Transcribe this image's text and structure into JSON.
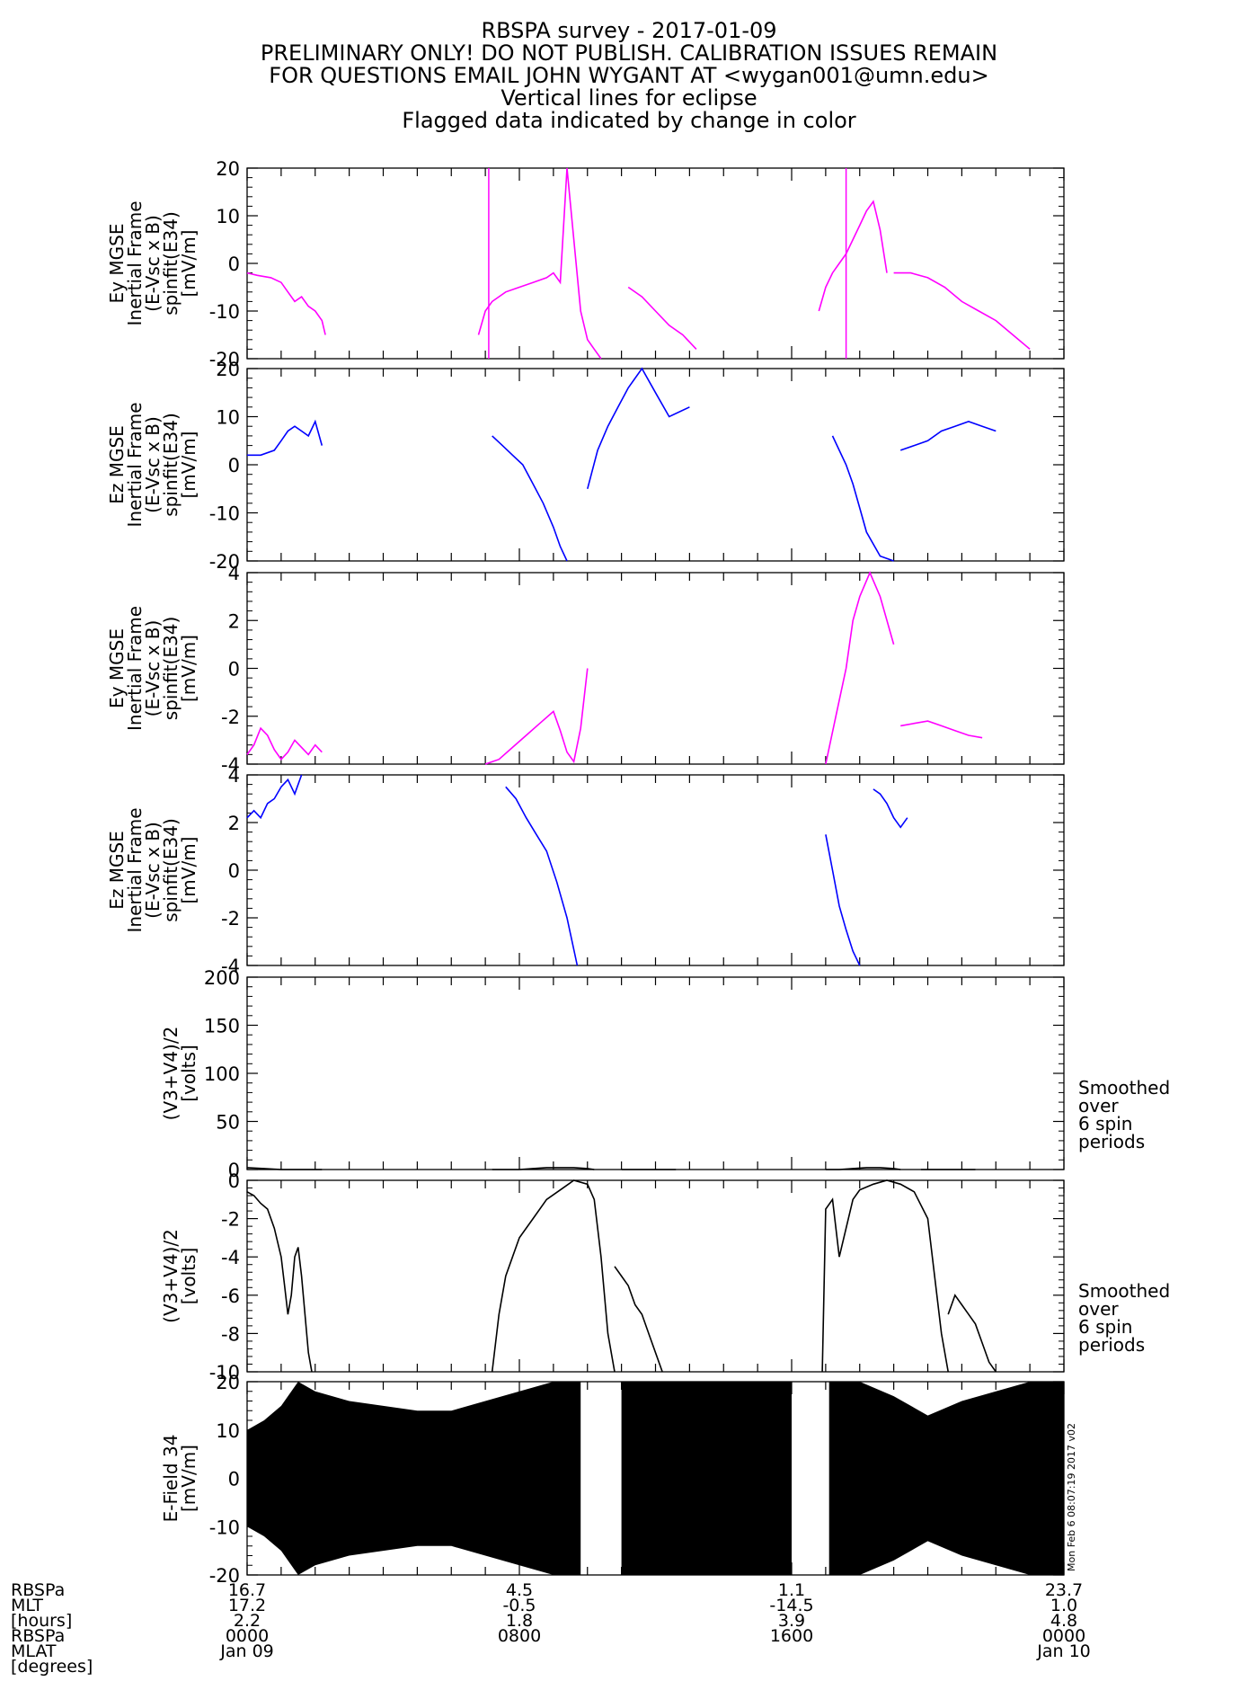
{
  "header": {
    "lines": [
      "RBSPA survey - 2017-01-09",
      "PRELIMINARY ONLY! DO NOT PUBLISH. CALIBRATION ISSUES REMAIN",
      "FOR QUESTIONS EMAIL JOHN WYGANT AT <wygan001@umn.edu>",
      "Vertical lines for eclipse",
      "Flagged data indicated by change in color"
    ]
  },
  "side_note": [
    "Smoothed",
    "over",
    "6 spin",
    "periods"
  ],
  "timestamp_note": "Mon Feb  6 08:07:19 2017 v02",
  "x_axis": {
    "row_labels": [
      "RBSPa",
      "MLT",
      "[hours]",
      "RBSPa",
      "MLAT",
      "[degrees]"
    ],
    "ticks": [
      {
        "t": 0,
        "lines": [
          "16.7",
          "17.2",
          "2.2",
          "0000",
          "Jan 09"
        ]
      },
      {
        "t": 8,
        "lines": [
          "4.5",
          "-0.5",
          "1.8",
          "0800"
        ]
      },
      {
        "t": 16,
        "lines": [
          "1.1",
          "-14.5",
          "3.9",
          "1600"
        ]
      },
      {
        "t": 24,
        "lines": [
          "23.7",
          "1.0",
          "4.8",
          "0000",
          "Jan 10"
        ]
      }
    ],
    "xlim_hours": [
      0,
      24
    ]
  },
  "colors": {
    "flagged": "#ff00ff",
    "normal": "#0000ff",
    "trace": "#000000"
  },
  "chart_data": [
    {
      "type": "line",
      "ylabel": [
        "Ey MGSE",
        "Inertial Frame",
        "(E-Vsc x B)",
        "spinfit(E34)",
        "[mV/m]"
      ],
      "ylim": [
        -20,
        20
      ],
      "yticks": [
        -20,
        -10,
        0,
        10,
        20
      ],
      "color": "flagged",
      "eclipse_hours": [
        7.1,
        17.6
      ],
      "series": [
        {
          "x": [
            0,
            0.3,
            0.7,
            1.0,
            1.2,
            1.4,
            1.6,
            1.8,
            2.0,
            2.2,
            2.3
          ],
          "y": [
            -2,
            -2.5,
            -3,
            -4,
            -6,
            -8,
            -7,
            -9,
            -10,
            -12,
            -15
          ]
        },
        {
          "x": [
            6.8,
            7.0,
            7.2,
            7.6,
            8.0,
            8.4,
            8.8,
            9.0,
            9.2,
            9.4,
            9.6,
            9.8,
            10.0,
            10.2,
            10.4
          ],
          "y": [
            -15,
            -10,
            -8,
            -6,
            -5,
            -4,
            -3,
            -2,
            -4,
            20,
            5,
            -10,
            -16,
            -18,
            -20
          ]
        },
        {
          "x": [
            11.2,
            11.6,
            12.0,
            12.4,
            12.8,
            13.2
          ],
          "y": [
            -5,
            -7,
            -10,
            -13,
            -15,
            -18
          ]
        },
        {
          "x": [
            16.8,
            17.0,
            17.2,
            17.4,
            17.6,
            17.8,
            18.0,
            18.2,
            18.4,
            18.6,
            18.8
          ],
          "y": [
            -10,
            -5,
            -2,
            0,
            2,
            5,
            8,
            11,
            13,
            7,
            -2
          ]
        },
        {
          "x": [
            19.0,
            19.5,
            20.0,
            20.5,
            21.0,
            21.5,
            22.0,
            22.5,
            23.0
          ],
          "y": [
            -2,
            -2,
            -3,
            -5,
            -8,
            -10,
            -12,
            -15,
            -18
          ]
        }
      ]
    },
    {
      "type": "line",
      "ylabel": [
        "Ez MGSE",
        "Inertial Frame",
        "(E-Vsc x B)",
        "spinfit(E34)",
        "[mV/m]"
      ],
      "ylim": [
        -20,
        20
      ],
      "yticks": [
        -20,
        -10,
        0,
        10,
        20
      ],
      "color": "normal",
      "series": [
        {
          "x": [
            0,
            0.4,
            0.8,
            1.0,
            1.2,
            1.4,
            1.6,
            1.8,
            2.0,
            2.2
          ],
          "y": [
            2,
            2,
            3,
            5,
            7,
            8,
            7,
            6,
            9,
            4
          ]
        },
        {
          "x": [
            7.2,
            7.5,
            7.8,
            8.1,
            8.4,
            8.7,
            9.0,
            9.2,
            9.4
          ],
          "y": [
            6,
            4,
            2,
            0,
            -4,
            -8,
            -13,
            -17,
            -20
          ]
        },
        {
          "x": [
            10.0,
            10.3,
            10.6,
            10.9,
            11.2,
            11.6,
            12.0,
            12.4,
            13.0
          ],
          "y": [
            -5,
            3,
            8,
            12,
            16,
            20,
            15,
            10,
            12
          ]
        },
        {
          "x": [
            17.2,
            17.4,
            17.6,
            17.8,
            18.0,
            18.2,
            18.6,
            19.0
          ],
          "y": [
            6,
            3,
            0,
            -4,
            -9,
            -14,
            -19,
            -20
          ]
        },
        {
          "x": [
            19.2,
            19.6,
            20.0,
            20.4,
            20.8,
            21.2,
            21.6,
            22.0
          ],
          "y": [
            3,
            4,
            5,
            7,
            8,
            9,
            8,
            7
          ]
        }
      ]
    },
    {
      "type": "line",
      "ylabel": [
        "Ey MGSE",
        "Inertial Frame",
        "(E-Vsc x B)",
        "spinfit(E34)",
        "[mV/m]"
      ],
      "ylim": [
        -4,
        4
      ],
      "yticks": [
        -4,
        -2,
        0,
        2,
        4
      ],
      "color": "flagged",
      "series": [
        {
          "x": [
            0,
            0.2,
            0.4,
            0.6,
            0.8,
            1.0,
            1.2,
            1.4,
            1.6,
            1.8,
            2.0,
            2.2
          ],
          "y": [
            -3.6,
            -3.2,
            -2.5,
            -2.8,
            -3.4,
            -3.8,
            -3.5,
            -3.0,
            -3.3,
            -3.6,
            -3.2,
            -3.5
          ]
        },
        {
          "x": [
            7.0,
            7.4,
            7.8,
            8.2,
            8.6,
            9.0,
            9.2,
            9.4,
            9.6,
            9.8,
            10.0
          ],
          "y": [
            -4,
            -3.8,
            -3.3,
            -2.8,
            -2.3,
            -1.8,
            -2.6,
            -3.5,
            -3.9,
            -2.5,
            0
          ]
        },
        {
          "x": [
            17.0,
            17.3,
            17.6,
            17.8,
            18.0,
            18.3,
            18.6,
            19.0
          ],
          "y": [
            -4,
            -2,
            0,
            2,
            3,
            4,
            3,
            1
          ]
        },
        {
          "x": [
            19.2,
            19.6,
            20.0,
            20.4,
            20.8,
            21.2,
            21.6
          ],
          "y": [
            -2.4,
            -2.3,
            -2.2,
            -2.4,
            -2.6,
            -2.8,
            -2.9
          ]
        }
      ]
    },
    {
      "type": "line",
      "ylabel": [
        "Ez MGSE",
        "Inertial Frame",
        "(E-Vsc x B)",
        "spinfit(E34)",
        "[mV/m]"
      ],
      "ylim": [
        -4,
        4
      ],
      "yticks": [
        -4,
        -2,
        0,
        2,
        4
      ],
      "color": "normal",
      "series": [
        {
          "x": [
            0,
            0.2,
            0.4,
            0.6,
            0.8,
            1.0,
            1.2,
            1.4,
            1.6
          ],
          "y": [
            2.2,
            2.5,
            2.2,
            2.8,
            3.0,
            3.5,
            3.8,
            3.2,
            4.0
          ]
        },
        {
          "x": [
            7.6,
            7.9,
            8.2,
            8.5,
            8.8,
            9.1,
            9.4,
            9.7
          ],
          "y": [
            3.5,
            3.0,
            2.2,
            1.5,
            0.8,
            -0.5,
            -2.0,
            -4.0
          ]
        },
        {
          "x": [
            17.0,
            17.2,
            17.4,
            17.6,
            17.8,
            18.0
          ],
          "y": [
            1.5,
            0,
            -1.5,
            -2.5,
            -3.4,
            -4.0
          ]
        },
        {
          "x": [
            18.4,
            18.6,
            18.8,
            19.0,
            19.2,
            19.4
          ],
          "y": [
            3.4,
            3.2,
            2.8,
            2.2,
            1.8,
            2.2
          ]
        }
      ]
    },
    {
      "type": "line",
      "ylabel": [
        "(V3+V4)/2",
        "[volts]"
      ],
      "ylim": [
        0,
        200
      ],
      "yticks": [
        0,
        50,
        100,
        150,
        200
      ],
      "color": "trace",
      "series": [
        {
          "x": [
            0,
            0.5,
            1.0,
            1.5,
            2.0,
            2.2
          ],
          "y": [
            2,
            1,
            0,
            -1,
            -3,
            -4
          ]
        },
        {
          "x": [
            7.2,
            7.6,
            8.0,
            8.4,
            8.8,
            9.2,
            9.6,
            10.0,
            10.2
          ],
          "y": [
            -5,
            -2,
            0,
            1,
            2,
            2,
            2,
            1,
            -5
          ]
        },
        {
          "x": [
            11.0,
            11.4,
            11.8,
            12.2,
            12.6
          ],
          "y": [
            -2,
            -2,
            -3,
            -4,
            -6
          ]
        },
        {
          "x": [
            17.0,
            17.4,
            17.8,
            18.2,
            18.6,
            19.0,
            19.2
          ],
          "y": [
            -5,
            0,
            1,
            2,
            2,
            1,
            -5
          ]
        },
        {
          "x": [
            19.8,
            20.2,
            20.6,
            21.0,
            21.4
          ],
          "y": [
            -3,
            -2,
            -3,
            -5,
            -7
          ]
        }
      ]
    },
    {
      "type": "line",
      "ylabel": [
        "(V3+V4)/2",
        "[volts]"
      ],
      "ylim": [
        -10,
        0
      ],
      "yticks": [
        -10,
        -8,
        -6,
        -4,
        -2,
        0
      ],
      "color": "trace",
      "series": [
        {
          "x": [
            0,
            0.2,
            0.4,
            0.6,
            0.8,
            1.0,
            1.1,
            1.2,
            1.3,
            1.4,
            1.5,
            1.6,
            1.7,
            1.8,
            1.9
          ],
          "y": [
            -0.6,
            -0.8,
            -1.2,
            -1.5,
            -2.5,
            -4,
            -5.5,
            -7,
            -6,
            -4,
            -3.5,
            -5,
            -7,
            -9,
            -10
          ]
        },
        {
          "x": [
            7.2,
            7.4,
            7.6,
            7.8,
            8.0,
            8.4,
            8.8,
            9.2,
            9.6,
            10.0,
            10.2,
            10.4,
            10.6,
            10.8
          ],
          "y": [
            -10,
            -7,
            -5,
            -4,
            -3,
            -2,
            -1,
            -0.5,
            0,
            -0.2,
            -1,
            -4,
            -8,
            -10
          ]
        },
        {
          "x": [
            10.8,
            11.0,
            11.2,
            11.4,
            11.6,
            11.8,
            12.0,
            12.2
          ],
          "y": [
            -4.5,
            -5,
            -5.5,
            -6.5,
            -7,
            -8,
            -9,
            -10
          ]
        },
        {
          "x": [
            16.9,
            17.0,
            17.2,
            17.4,
            17.6,
            17.8,
            18.0,
            18.4,
            18.8,
            19.2,
            19.6,
            20.0,
            20.2,
            20.4,
            20.6
          ],
          "y": [
            -10,
            -1.5,
            -1.0,
            -4,
            -2.5,
            -1,
            -0.5,
            -0.2,
            0,
            -0.2,
            -0.6,
            -2,
            -5,
            -8,
            -10
          ]
        },
        {
          "x": [
            20.6,
            20.8,
            21.0,
            21.2,
            21.4,
            21.6,
            21.8,
            22.0
          ],
          "y": [
            -7,
            -6,
            -6.5,
            -7,
            -7.5,
            -8.5,
            -9.5,
            -10
          ]
        }
      ]
    },
    {
      "type": "area",
      "ylabel": [
        "E-Field 34",
        "[mV/m]"
      ],
      "ylim": [
        -20,
        20
      ],
      "yticks": [
        -20,
        -10,
        0,
        10,
        20
      ],
      "color": "trace",
      "envelope_gaps_hours": [
        [
          9.8,
          11.0
        ],
        [
          16.0,
          17.1
        ]
      ],
      "envelope": {
        "x": [
          0,
          0.5,
          1.0,
          1.5,
          2.0,
          2.5,
          3,
          4,
          5,
          6,
          7,
          8,
          9,
          9.8,
          11.0,
          12,
          13,
          14,
          15,
          16,
          17.1,
          18,
          19,
          20,
          21,
          22,
          23,
          24
        ],
        "amp": [
          10,
          12,
          15,
          20,
          18,
          17,
          16,
          15,
          14,
          14,
          16,
          18,
          20,
          20,
          20,
          20,
          20,
          20,
          20,
          20,
          20,
          20,
          17,
          13,
          16,
          18,
          20,
          20
        ]
      }
    }
  ]
}
